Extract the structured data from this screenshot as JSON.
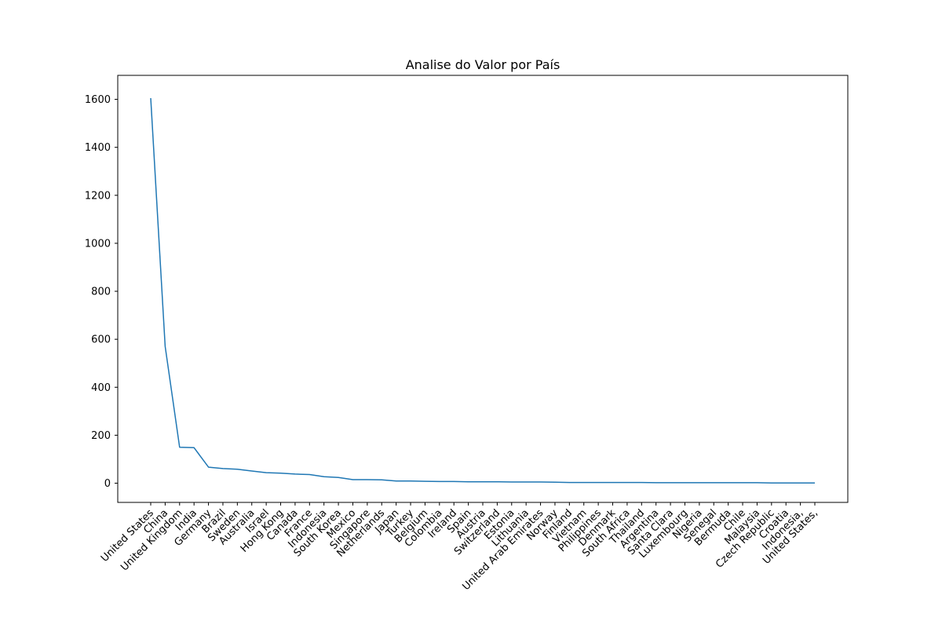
{
  "chart_data": {
    "type": "line",
    "title": "Analise do Valor por País",
    "xlabel": "",
    "ylabel": "",
    "ylim": [
      -80,
      1700
    ],
    "yticks": [
      0,
      200,
      400,
      600,
      800,
      1000,
      1200,
      1400,
      1600
    ],
    "grid": false,
    "legend": "none",
    "line_color": "#1f77b4",
    "categories": [
      "United States",
      "China",
      "United Kingdom",
      "India",
      "Germany",
      "Brazil",
      "Sweden",
      "Australia",
      "Israel",
      "Hong Kong",
      "Canada",
      "France",
      "Indonesia",
      "South Korea",
      "Mexico",
      "Singapore",
      "Netherlands",
      "Japan",
      "Turkey",
      "Belgium",
      "Colombia",
      "Ireland",
      "Spain",
      "Austria",
      "Switzerland",
      "Estonia",
      "Lithuania",
      "United Arab Emirates",
      "Norway",
      "Finland",
      "Vietnam",
      "Philippines",
      "Denmark",
      "South Africa",
      "Thailand",
      "Argentina",
      "Santa Clara",
      "Luxembourg",
      "Nigeria",
      "Senegal",
      "Bermuda",
      "Chile",
      "Malaysia",
      "Czech Republic",
      "Croatia",
      "Indonesia,",
      "United States,"
    ],
    "values": [
      1605,
      570,
      150,
      148,
      67,
      61,
      58,
      51,
      44,
      42,
      38,
      36,
      27,
      24,
      15,
      15,
      14,
      9,
      9,
      8,
      7,
      7,
      6,
      6,
      6,
      5,
      5,
      5,
      4,
      3,
      3,
      3,
      3,
      3,
      3,
      2,
      2,
      2,
      2,
      2,
      2,
      2,
      2,
      1,
      1,
      1,
      1
    ]
  }
}
